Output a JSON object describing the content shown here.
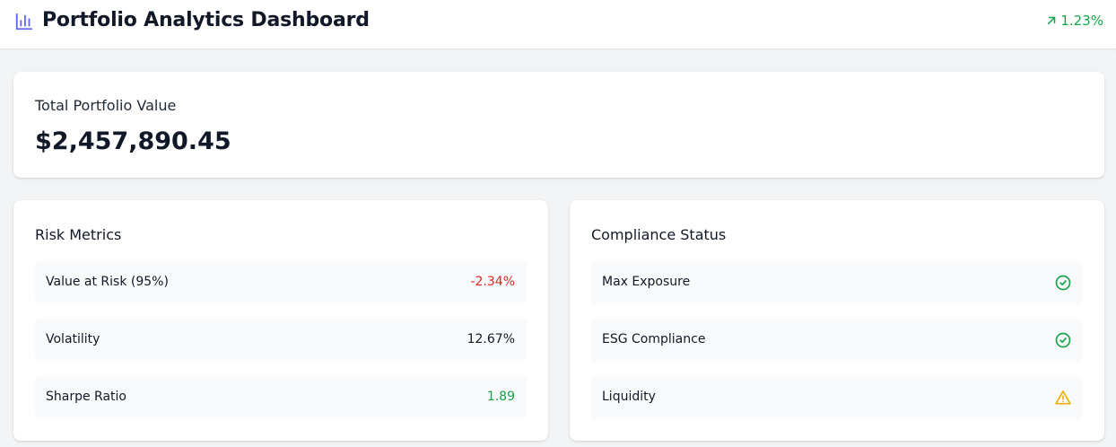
{
  "header": {
    "title": "Portfolio Analytics Dashboard",
    "title_icon": "bar-chart-icon",
    "change": "1.23%",
    "change_icon": "arrow-up-right-icon",
    "change_color": "#16a34a",
    "accent": "#6366f1"
  },
  "total": {
    "label": "Total Portfolio Value",
    "value": "$2,457,890.45"
  },
  "risk": {
    "title": "Risk Metrics",
    "items": [
      {
        "name": "Value at Risk (95%)",
        "value": "-2.34%",
        "color": "#dc2626"
      },
      {
        "name": "Volatility",
        "value": "12.67%",
        "color": "#111827"
      },
      {
        "name": "Sharpe Ratio",
        "value": "1.89",
        "color": "#16a34a"
      }
    ]
  },
  "compliance": {
    "title": "Compliance Status",
    "items": [
      {
        "name": "Max Exposure",
        "status_icon": "check-circle-icon",
        "color": "#16a34a"
      },
      {
        "name": "ESG Compliance",
        "status_icon": "check-circle-icon",
        "color": "#16a34a"
      },
      {
        "name": "Liquidity",
        "status_icon": "warning-triangle-icon",
        "color": "#eab308"
      }
    ]
  }
}
